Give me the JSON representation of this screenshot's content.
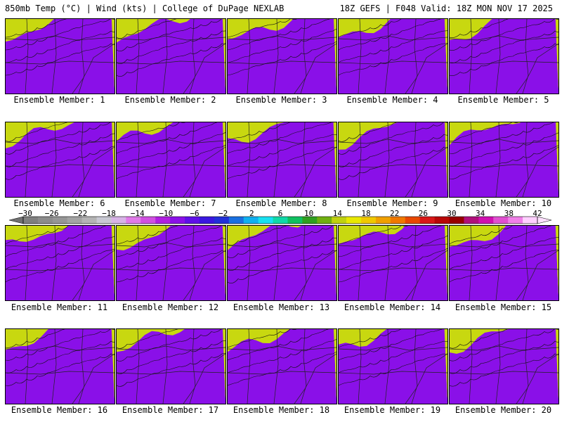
{
  "header": {
    "left": "850mb Temp (°C) | Wind (kts) | College of DuPage NEXLAB",
    "right": "18Z GEFS | F048 Valid: 18Z MON NOV 17 2025"
  },
  "panel_label_prefix": "Ensemble Member: ",
  "members": [
    "1",
    "2",
    "3",
    "4",
    "5",
    "6",
    "7",
    "8",
    "9",
    "10",
    "11",
    "12",
    "13",
    "14",
    "15",
    "16",
    "17",
    "18",
    "19",
    "20"
  ],
  "colorbar": {
    "ticks": [
      "−30",
      "−26",
      "−22",
      "−18",
      "−14",
      "−10",
      "−6",
      "−2",
      "2",
      "6",
      "10",
      "14",
      "18",
      "22",
      "26",
      "30",
      "34",
      "38",
      "42"
    ],
    "colors": [
      "#7f7f7f",
      "#8c8c8c",
      "#969696",
      "#a3a3a3",
      "#b4b4b4",
      "#c8c8d2",
      "#d7b3e6",
      "#e07ae8",
      "#d050e0",
      "#b020e0",
      "#8a10e8",
      "#6010e8",
      "#3a18e0",
      "#2230d8",
      "#1a70e0",
      "#10b0f0",
      "#18e0f0",
      "#10d8a8",
      "#10c060",
      "#30a020",
      "#70b010",
      "#c0d010",
      "#e8e800",
      "#f0c800",
      "#f0a000",
      "#f07800",
      "#e84800",
      "#d81818",
      "#b80808",
      "#980000",
      "#b0107a",
      "#d010b0",
      "#e050d0",
      "#f080e8",
      "#ffd0ff"
    ]
  },
  "colors": {
    "border": "#000000",
    "background": "#ffffff"
  }
}
